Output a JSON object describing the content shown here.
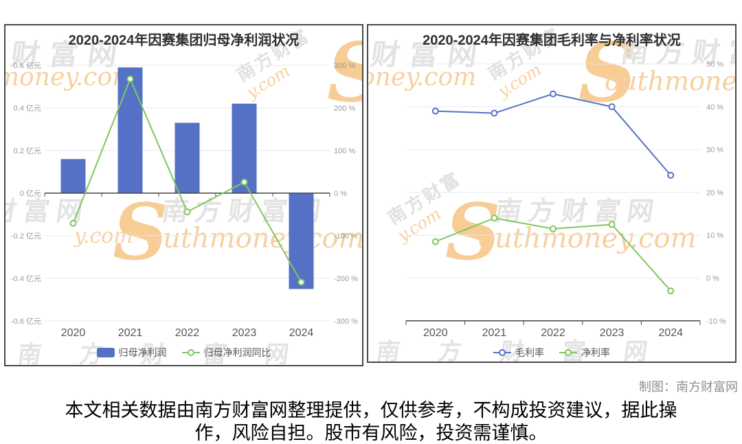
{
  "credit": "制图：南方财富网",
  "disclaimer": {
    "line1": "本文相关数据由南方财富网整理提供，仅供参考，不构成投资建议，据此操",
    "line2": "作，风险自担。股市有风险，投资需谨慎。"
  },
  "watermarks": {
    "site_cn": "南方财富网",
    "site_cn_short": "南方财富",
    "cn_frag": "财富网",
    "site_en": "Southmoney.com",
    "site_en_tail": "outhmoney.com",
    "money_frag": "money.com",
    "en_frag": "y.com",
    "swoosh": "S"
  },
  "colors": {
    "bar_blue": "#5571c6",
    "line_green": "#7ec75e",
    "grid_light": "#e4e9f4",
    "axis_dark": "#454545",
    "tick_label": "#999999",
    "category_label": "#555555",
    "title_text": "#2f2f2f"
  },
  "chart_data": [
    {
      "type": "bar",
      "title": "2020-2024年因赛集团归母净利润状况",
      "categories": [
        "2020",
        "2021",
        "2022",
        "2023",
        "2024"
      ],
      "series": [
        {
          "name": "归母净利润",
          "chart_type": "bar",
          "unit": "亿元",
          "color": "#5571c6",
          "values": [
            0.16,
            0.59,
            0.33,
            0.42,
            -0.45
          ]
        },
        {
          "name": "归母净利润同比",
          "chart_type": "line",
          "unit": "%",
          "color": "#7ec75e",
          "values": [
            -71,
            268,
            -44,
            26,
            -209
          ]
        }
      ],
      "y_left": {
        "unit": "亿元",
        "min": -0.6,
        "max": 0.6,
        "step": 0.2,
        "labels": [
          "0.6 亿元",
          "0.4 亿元",
          "0.2 亿元",
          "0 亿元",
          "-0.2 亿元",
          "-0.4 亿元",
          "-0.6 亿元"
        ]
      },
      "y_right": {
        "unit": "%",
        "min": -300,
        "max": 300,
        "step": 100,
        "labels": [
          "300 %",
          "200 %",
          "100 %",
          "0 %",
          "-100 %",
          "-200 %",
          "-300 %"
        ]
      },
      "grid": true,
      "legend_position": "bottom"
    },
    {
      "type": "line",
      "title": "2020-2024年因赛集团毛利率与净利率状况",
      "categories": [
        "2020",
        "2021",
        "2022",
        "2023",
        "2024"
      ],
      "series": [
        {
          "name": "毛利率",
          "chart_type": "line",
          "unit": "%",
          "color": "#5571c6",
          "values": [
            39,
            38.5,
            43,
            40,
            24
          ]
        },
        {
          "name": "净利率",
          "chart_type": "line",
          "unit": "%",
          "color": "#7ec75e",
          "values": [
            8.5,
            14,
            11.5,
            12.5,
            -3
          ]
        }
      ],
      "y_right": {
        "unit": "%",
        "min": -10,
        "max": 50,
        "step": 10,
        "labels": [
          "50 %",
          "40 %",
          "30 %",
          "20 %",
          "10 %",
          "0 %",
          "-10 %"
        ]
      },
      "grid": true,
      "legend_position": "bottom"
    }
  ]
}
